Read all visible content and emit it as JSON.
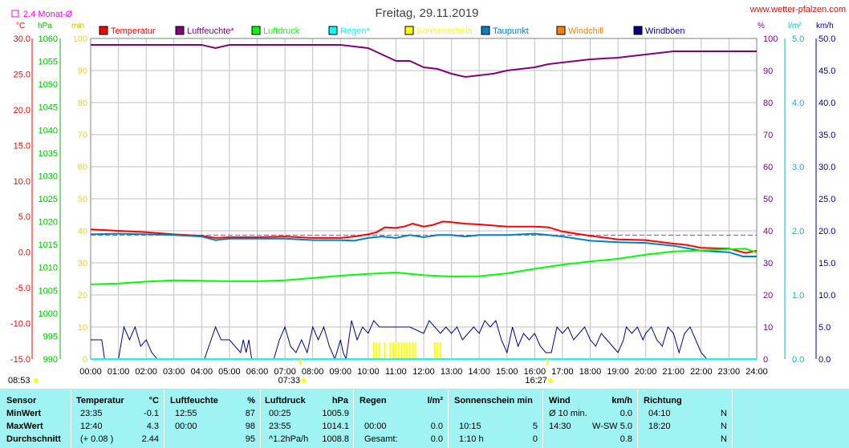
{
  "title": "Freitag, 29.11.2019",
  "site": "www.wetter-pfalzen.com",
  "avg_label": "2.4 Monat-Ø",
  "units_left": [
    "°C",
    "hPa",
    "min"
  ],
  "units_right": [
    "%",
    "l/m²",
    "km/h"
  ],
  "legend": [
    {
      "label": "Temperatur",
      "color": "#ff0000"
    },
    {
      "label": "Luftfeuchte*",
      "color": "#800080"
    },
    {
      "label": "Luftdruck",
      "color": "#00ff00"
    },
    {
      "label": "Regen*",
      "color": "#00ffff"
    },
    {
      "label": "Sonnenschein",
      "color": "#ffff00"
    },
    {
      "label": "Taupunkt",
      "color": "#0080c0"
    },
    {
      "label": "Windchill",
      "color": "#ff8000"
    },
    {
      "label": "Windböen",
      "color": "#000080"
    }
  ],
  "axis_temp": [
    "30.0",
    "25.0",
    "20.0",
    "15.0",
    "10.0",
    "5.0",
    "0.0",
    "-5.0",
    "-10.0",
    "-15.0"
  ],
  "axis_press": [
    "1060",
    "1055",
    "1050",
    "1045",
    "1040",
    "1035",
    "1030",
    "1025",
    "1020",
    "1015",
    "1010",
    "1005",
    "1000",
    "995",
    "990"
  ],
  "axis_min": [
    "100",
    "90",
    "80",
    "70",
    "60",
    "50",
    "40",
    "30",
    "20",
    "10",
    "0"
  ],
  "axis_hum": [
    "100",
    "90",
    "80",
    "70",
    "60",
    "50",
    "40",
    "30",
    "20",
    "10",
    "0"
  ],
  "axis_rain": [
    "5.0",
    "4.0",
    "3.0",
    "2.0",
    "1.0",
    "0.0"
  ],
  "axis_wind": [
    "50.0",
    "45.0",
    "40.0",
    "35.0",
    "30.0",
    "25.0",
    "20.0",
    "15.0",
    "10.0",
    "5.0",
    "0.0"
  ],
  "x_ticks": [
    "00:00",
    "01:00",
    "02:00",
    "03:00",
    "04:00",
    "05:00",
    "06:00",
    "07:00",
    "08:00",
    "09:00",
    "10:00",
    "11:00",
    "12:00",
    "13:00",
    "14:00",
    "15:00",
    "16:00",
    "17:00",
    "18:00",
    "19:00",
    "20:00",
    "21:00",
    "22:00",
    "23:00",
    "24:00"
  ],
  "sunrise": "07:33",
  "sunset": "16:27",
  "now": "08:53",
  "chart_data": {
    "type": "line",
    "title": "Freitag, 29.11.2019",
    "x_unit": "hours",
    "xlim": [
      0,
      24
    ],
    "temp_monthly_avg": 2.4,
    "series": [
      {
        "name": "Temperatur",
        "axis": "°C",
        "color": "#ff0000",
        "x": [
          0,
          1,
          2,
          3,
          4,
          4.5,
          5,
          6,
          7,
          8,
          9,
          9.5,
          10,
          10.3,
          10.6,
          11,
          11.3,
          11.6,
          12,
          12.3,
          12.7,
          13,
          13.5,
          14,
          15,
          16,
          16.5,
          17,
          18,
          19,
          20,
          21,
          21.5,
          22,
          23,
          23.6,
          24
        ],
        "y": [
          3.2,
          3.0,
          2.8,
          2.5,
          2.3,
          2.0,
          2.1,
          2.1,
          2.2,
          2.0,
          2.0,
          2.2,
          2.5,
          2.8,
          3.5,
          3.4,
          3.6,
          4.0,
          3.6,
          3.8,
          4.3,
          4.2,
          4.0,
          3.9,
          3.6,
          3.6,
          3.5,
          2.9,
          2.3,
          1.8,
          1.7,
          1.2,
          1.0,
          0.6,
          0.5,
          -0.1,
          0.2
        ]
      },
      {
        "name": "Taupunkt",
        "axis": "°C",
        "color": "#0080c0",
        "x": [
          0,
          1,
          2,
          3,
          4,
          4.5,
          5,
          6,
          7,
          8,
          9,
          9.5,
          10,
          10.5,
          11,
          11.5,
          12,
          12.5,
          13,
          13.5,
          14,
          15,
          16,
          16.5,
          17,
          18,
          19,
          20,
          21,
          22,
          23,
          23.5,
          24
        ],
        "y": [
          2.5,
          2.6,
          2.5,
          2.4,
          2.2,
          1.7,
          1.9,
          1.9,
          1.9,
          1.7,
          1.7,
          1.6,
          2.0,
          2.2,
          2.0,
          2.4,
          2.1,
          2.4,
          2.4,
          2.2,
          2.4,
          2.4,
          2.6,
          2.4,
          2.2,
          1.6,
          1.4,
          1.3,
          0.9,
          0.2,
          0.0,
          -0.6,
          -0.6
        ]
      },
      {
        "name": "Luftdruck",
        "axis": "hPa",
        "color": "#00ff00",
        "x": [
          0,
          1,
          2,
          3,
          4,
          5,
          6,
          7,
          8,
          9,
          10,
          11,
          12,
          13,
          14,
          15,
          16,
          17,
          18,
          19,
          20,
          21,
          22,
          23,
          23.6,
          24
        ],
        "y": [
          1006.3,
          1006.5,
          1006.9,
          1007.2,
          1007.1,
          1007.0,
          1007.0,
          1007.2,
          1007.7,
          1008.2,
          1008.6,
          1008.9,
          1008.3,
          1008.0,
          1008.1,
          1008.7,
          1009.7,
          1010.6,
          1011.3,
          1011.9,
          1012.8,
          1013.5,
          1013.7,
          1014.0,
          1014.1,
          1013.3
        ]
      },
      {
        "name": "Luftfeuchte*",
        "axis": "%",
        "color": "#800080",
        "x": [
          0,
          1,
          2,
          3,
          4,
          4.5,
          5,
          6,
          7,
          8,
          9,
          10,
          10.5,
          11,
          11.5,
          12,
          12.5,
          13,
          13.5,
          14,
          14.5,
          15,
          16,
          16.5,
          17,
          18,
          19,
          20,
          21,
          22,
          23,
          24
        ],
        "y": [
          98,
          98,
          98,
          98,
          98,
          97,
          98,
          98,
          98,
          98,
          98,
          97,
          95,
          93,
          93,
          91,
          90.5,
          89,
          88,
          88.5,
          89,
          90,
          91,
          92,
          92.5,
          93.5,
          94,
          95,
          96,
          96,
          96,
          96
        ]
      },
      {
        "name": "Windböen",
        "axis": "km/h",
        "color": "#000080",
        "x": [
          0,
          0.3,
          0.4,
          0.5,
          1.0,
          1.2,
          1.4,
          1.6,
          1.8,
          2.0,
          2.2,
          2.4,
          4.1,
          4.5,
          4.7,
          5.0,
          5.4,
          5.5,
          5.6,
          5.7,
          5.8,
          6.6,
          6.8,
          7.0,
          7.2,
          7.4,
          7.6,
          7.8,
          8.0,
          8.2,
          8.4,
          8.6,
          8.8,
          9.0,
          9.1,
          9.2,
          9.4,
          9.6,
          9.8,
          10.0,
          10.2,
          10.4,
          10.6,
          10.8,
          11.0,
          11.5,
          12.0,
          12.2,
          12.4,
          12.6,
          12.8,
          13.0,
          13.2,
          13.4,
          13.6,
          13.8,
          14.0,
          14.2,
          14.4,
          14.6,
          14.8,
          15.0,
          15.2,
          15.4,
          15.6,
          15.8,
          16.0,
          16.2,
          16.4,
          16.6,
          16.8,
          17.0,
          17.2,
          17.4,
          17.6,
          17.8,
          18.0,
          18.2,
          18.4,
          18.6,
          18.8,
          19.0,
          19.2,
          19.3,
          19.5,
          19.7,
          19.9,
          20.0,
          20.2,
          20.4,
          20.6,
          20.8,
          21.0,
          21.2,
          21.4,
          21.6,
          21.8,
          22.0,
          22.2,
          22.4,
          23.0,
          24.0
        ],
        "y": [
          3.0,
          3.0,
          3.0,
          0.0,
          0.0,
          5.0,
          3.0,
          5.0,
          2.0,
          3.0,
          1.0,
          0.0,
          0.0,
          5.0,
          3.0,
          3.0,
          1.0,
          3.0,
          1.0,
          3.0,
          0.0,
          0.0,
          3.0,
          5.0,
          2.0,
          1.0,
          3.0,
          1.0,
          5.0,
          3.0,
          5.0,
          2.0,
          0.0,
          3.0,
          1.0,
          0.0,
          6.0,
          3.0,
          5.0,
          4.0,
          6.0,
          5.0,
          5.0,
          5.0,
          5.0,
          5.0,
          4.0,
          6.0,
          5.0,
          4.0,
          5.0,
          4.0,
          5.0,
          3.0,
          4.0,
          5.0,
          4.0,
          6.0,
          5.0,
          6.0,
          3.0,
          1.0,
          5.0,
          2.0,
          4.0,
          3.0,
          4.0,
          2.0,
          1.0,
          1.0,
          5.0,
          4.0,
          5.0,
          3.0,
          4.0,
          5.0,
          3.0,
          2.0,
          4.0,
          3.0,
          2.0,
          1.0,
          3.0,
          5.0,
          4.0,
          5.0,
          3.0,
          4.0,
          5.0,
          3.0,
          2.0,
          5.0,
          4.0,
          1.0,
          4.0,
          5.0,
          3.0,
          1.0,
          0.0,
          0.0,
          0.0,
          0.0
        ]
      },
      {
        "name": "Sonnenschein",
        "axis": "min",
        "color": "#ffff00",
        "x": [
          10.2,
          10.3,
          10.4,
          10.6,
          10.8,
          10.9,
          11.0,
          11.1,
          11.2,
          11.3,
          11.4,
          11.5,
          11.6,
          11.7,
          12.4,
          12.5,
          12.6
        ],
        "y": [
          5,
          5,
          5,
          5,
          5,
          5,
          5,
          5,
          5,
          5,
          5,
          5,
          5,
          5,
          5,
          5,
          5
        ]
      },
      {
        "name": "Regen*",
        "axis": "l/m²",
        "color": "#00ffff",
        "x": [
          0,
          24
        ],
        "y": [
          0.0,
          0.0
        ]
      }
    ],
    "ylim_temp": [
      -15,
      30
    ],
    "ylim_pressure": [
      990,
      1060
    ],
    "ylim_humidity": [
      0,
      100
    ],
    "ylim_rain": [
      0,
      5
    ],
    "ylim_wind": [
      0,
      50
    ]
  },
  "table": {
    "headers": [
      {
        "a": "Sensor",
        "b": ""
      },
      {
        "a": "Temperatur",
        "b": "°C"
      },
      {
        "a": "Luftfeuchte",
        "b": "%"
      },
      {
        "a": "Luftdruck",
        "b": "hPa"
      },
      {
        "a": "Regen",
        "b": "l/m²"
      },
      {
        "a": "Sonnenschein min",
        "b": ""
      },
      {
        "a": "Wind",
        "b": "km/h"
      },
      {
        "a": "Richtung",
        "b": ""
      }
    ],
    "rows": [
      {
        "label": "MinWert",
        "temp_t": "23:35",
        "temp_v": "-0.1",
        "hum_t": "12:55",
        "hum_v": "87",
        "pres_t": "00:25",
        "pres_v": "1005.9",
        "rain_t": "",
        "rain_v": "",
        "sun_t": "",
        "sun_v": "",
        "wind_t": "Ø 10 min.",
        "wind_d": "",
        "wind_v": "0.0",
        "dir_t": "04:10",
        "dir_v": "N"
      },
      {
        "label": "MaxWert",
        "temp_t": "12:40",
        "temp_v": "4.3",
        "hum_t": "00:00",
        "hum_v": "98",
        "pres_t": "23:55",
        "pres_v": "1014.1",
        "rain_t": "00:00",
        "rain_v": "0.0",
        "sun_t": "10:15",
        "sun_v": "5",
        "wind_t": "14:30",
        "wind_d": "W-SW",
        "wind_v": "5.0",
        "dir_t": "18:20",
        "dir_v": "N"
      },
      {
        "label": "Durchschnitt",
        "temp_t": "(+ 0.08 )",
        "temp_v": "2.44",
        "hum_t": "",
        "hum_v": "95",
        "pres_t": "^1.2hPa/h",
        "pres_v": "1008.8",
        "rain_t": "Gesamt:",
        "rain_v": "0.0",
        "sun_t": "1:10 h",
        "sun_v": "0",
        "wind_t": "",
        "wind_d": "",
        "wind_v": "0.8",
        "dir_t": "",
        "dir_v": "N"
      }
    ]
  }
}
